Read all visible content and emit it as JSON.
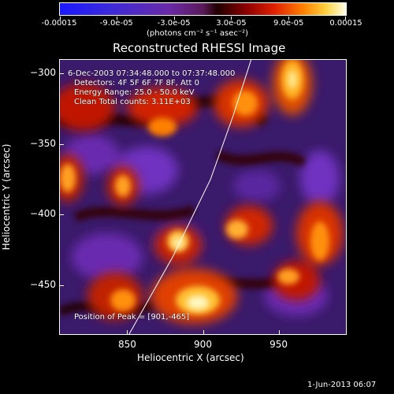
{
  "title": "Reconstructed RHESSI Image",
  "colorbar": {
    "tick_labels": [
      "-0.00015",
      "-9.0e-05",
      "-3.0e-05",
      "3.0e-05",
      "9.0e-05",
      "0.00015"
    ],
    "tick_values": [
      -0.00015,
      -9e-05,
      -3e-05,
      3e-05,
      9e-05,
      0.00015
    ],
    "range": [
      -0.00015,
      0.00015
    ],
    "units_label": "(photons cm⁻² s⁻¹ asec⁻²)"
  },
  "annotations": {
    "time_range": "6-Dec-2003 07:34:48.000 to 07:37:48.000",
    "detectors": "Detectors: 4F 5F 6F 7F 8F, Att 0",
    "energy_range": "Energy Range: 25.0 - 50.0 keV",
    "method": "Clean     Total counts: 3.11E+03",
    "peak_position": "Position of Peak = [901,-465]"
  },
  "axes": {
    "xlabel": "Heliocentric X (arcsec)",
    "ylabel": "Heliocentric Y (arcsec)",
    "xlim": [
      805,
      995
    ],
    "ylim": [
      -485,
      -290
    ],
    "xticks": [
      850,
      900,
      950
    ],
    "xtick_labels": [
      "850",
      "900",
      "950"
    ],
    "yticks": [
      -300,
      -350,
      -400,
      -450
    ],
    "ytick_labels": [
      "-300",
      "-350",
      "-400",
      "-450"
    ]
  },
  "limb_points": [
    [
      851,
      -485
    ],
    [
      880,
      -430
    ],
    [
      905,
      -375
    ],
    [
      920,
      -330
    ],
    [
      932,
      -290
    ]
  ],
  "footer": "1-Jun-2013 06:07"
}
